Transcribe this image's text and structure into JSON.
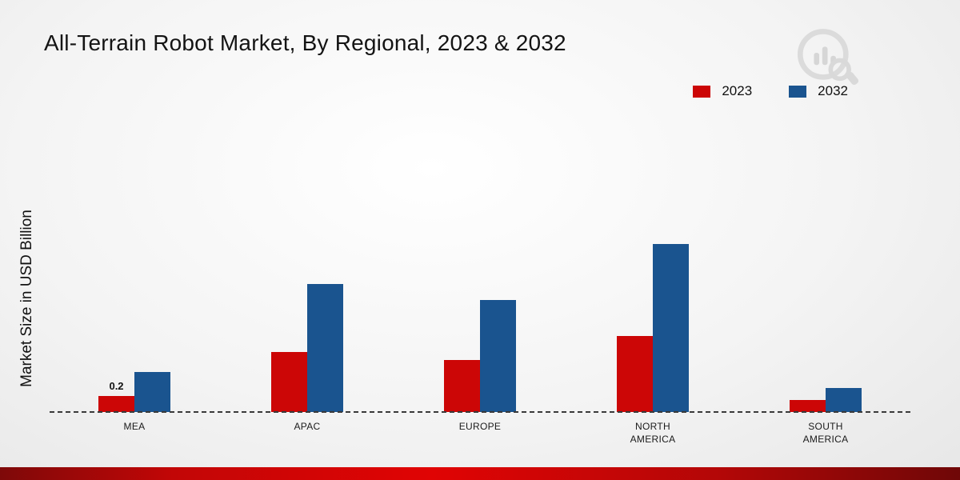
{
  "title": "All-Terrain Robot Market, By Regional, 2023 & 2032",
  "ylabel": "Market Size in USD Billion",
  "legend": [
    {
      "label": "2023",
      "color": "#cc0606"
    },
    {
      "label": "2032",
      "color": "#1a548f"
    }
  ],
  "colors": {
    "bar_2023": "#cc0606",
    "bar_2032": "#1a548f",
    "baseline": "#3a3a3a",
    "bottom_strip": "#c20606"
  },
  "chart_data": {
    "type": "bar",
    "title": "All-Terrain Robot Market, By Regional, 2023 & 2032",
    "xlabel": "",
    "ylabel": "Market Size in USD Billion",
    "categories": [
      "MEA",
      "APAC",
      "EUROPE",
      "NORTH AMERICA",
      "SOUTH AMERICA"
    ],
    "series": [
      {
        "name": "2023",
        "color": "#cc0606",
        "values": [
          0.2,
          0.75,
          0.65,
          0.95,
          0.15
        ]
      },
      {
        "name": "2032",
        "color": "#1a548f",
        "values": [
          0.5,
          1.6,
          1.4,
          2.1,
          0.3
        ]
      }
    ],
    "ylim": [
      0,
      2.6
    ],
    "grid": false,
    "axis_style": "dashed-baseline-only",
    "legend_position": "top-right",
    "data_labels": [
      {
        "series": "2023",
        "category": "MEA",
        "text": "0.2"
      }
    ]
  }
}
